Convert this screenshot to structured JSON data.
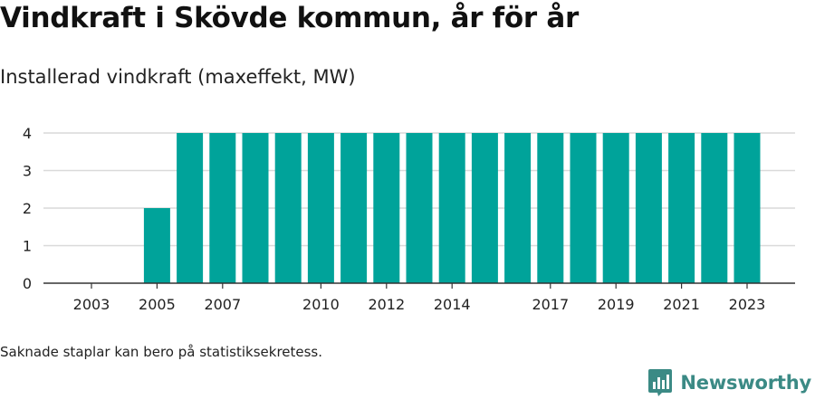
{
  "title": "Vindkraft i Skövde kommun, år för år",
  "subtitle": "Installerad vindkraft (maxeffekt, MW)",
  "footnote": "Saknade staplar kan bero på statistiksekretess.",
  "brand": {
    "name": "Newsworthy",
    "logo_icon": "bar-chart-speech-bubble-icon",
    "color": "#3b8a85"
  },
  "chart_data": {
    "type": "bar",
    "categories": [
      "2003",
      "2004",
      "2005",
      "2006",
      "2007",
      "2008",
      "2009",
      "2010",
      "2011",
      "2012",
      "2013",
      "2014",
      "2015",
      "2016",
      "2017",
      "2018",
      "2019",
      "2020",
      "2021",
      "2022",
      "2023"
    ],
    "values": [
      0,
      0,
      2,
      4,
      4,
      4,
      4,
      4,
      4,
      4,
      4,
      4,
      4,
      4,
      4,
      4,
      4,
      4,
      4,
      4,
      4
    ],
    "x_tick_labels": [
      "2003",
      "2005",
      "2007",
      "2010",
      "2012",
      "2014",
      "2017",
      "2019",
      "2021",
      "2023"
    ],
    "y_ticks": [
      "0",
      "1",
      "2",
      "3",
      "4"
    ],
    "ylim": [
      0,
      4
    ],
    "grid": true,
    "bar_color": "#00a39a"
  }
}
